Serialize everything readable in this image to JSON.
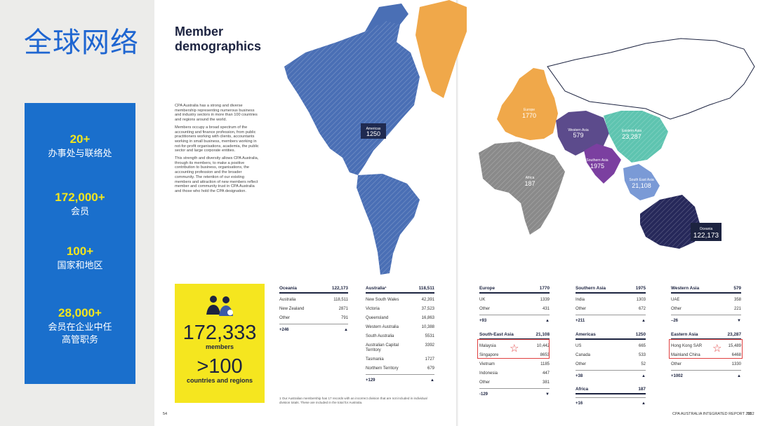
{
  "slide": {
    "title": "全球网络",
    "stats": [
      {
        "number": "20+",
        "label": "办事处与联络处"
      },
      {
        "number": "172,000+",
        "label": "会员"
      },
      {
        "number": "100+",
        "label": "国家和地区"
      },
      {
        "number": "28,000+",
        "label": "会员在企业中任高管职务"
      }
    ]
  },
  "report": {
    "title": "Member demographics",
    "intro": [
      "CPA Australia has a strong and diverse membership representing numerous business and industry sectors in more than 100 countries and regions around the world.",
      "Members occupy a broad spectrum of the accounting and finance profession, from public practitioners working with clients, accountants working in small business, members working in not-for-profit organisations, academia, the public sector and large corporate entities.",
      "This strength and diversity allows CPA Australia, through its members, to make a positive contribution to business, organisations, the accounting profession and the broader community. The retention of our existing members and attraction of new members reflect member and community trust in CPA Australia and those who hold the CPA designation."
    ],
    "map_labels": [
      {
        "name": "Americas",
        "value": "1250"
      },
      {
        "name": "Europe",
        "value": "1770"
      },
      {
        "name": "Western Asia",
        "value": "579"
      },
      {
        "name": "Eastern Asia",
        "value": "23,287"
      },
      {
        "name": "Southern Asia",
        "value": "1975"
      },
      {
        "name": "Africa",
        "value": "187"
      },
      {
        "name": "South East Asia",
        "value": "21,108"
      },
      {
        "name": "Oceania",
        "value": "122,173"
      }
    ],
    "summary": {
      "members_value": "172,333",
      "members_label": "members",
      "countries_value": ">100",
      "countries_label": "countries and regions"
    },
    "tables": {
      "oceania": {
        "title": "Oceania",
        "total": "122,173",
        "rows": [
          [
            "Australia",
            "118,511"
          ],
          [
            "New Zealand",
            "2871"
          ],
          [
            "Other",
            "791"
          ]
        ],
        "change": "+246",
        "arrow": "▲"
      },
      "australia": {
        "title": "Australia¹",
        "total": "118,511",
        "rows": [
          [
            "New South Wales",
            "42,391"
          ],
          [
            "Victoria",
            "37,523"
          ],
          [
            "Queensland",
            "16,863"
          ],
          [
            "Western Australia",
            "10,388"
          ],
          [
            "South Australia",
            "5531"
          ],
          [
            "Australian Capital Territory",
            "3392"
          ],
          [
            "Tasmania",
            "1727"
          ],
          [
            "Northern Territory",
            "679"
          ]
        ],
        "change": "+129",
        "arrow": "▲"
      },
      "europe": {
        "title": "Europe",
        "total": "1770",
        "rows": [
          [
            "UK",
            "1339"
          ],
          [
            "Other",
            "431"
          ]
        ],
        "change": "+93",
        "arrow": "▲"
      },
      "southern_asia": {
        "title": "Southern Asia",
        "total": "1975",
        "rows": [
          [
            "India",
            "1303"
          ],
          [
            "Other",
            "672"
          ]
        ],
        "change": "+211",
        "arrow": "▲"
      },
      "western_asia": {
        "title": "Western Asia",
        "total": "579",
        "rows": [
          [
            "UAE",
            "358"
          ],
          [
            "Other",
            "221"
          ]
        ],
        "change": "–26",
        "arrow": "▼"
      },
      "south_east_asia": {
        "title": "South-East Asia",
        "total": "21,108",
        "rows": [
          [
            "Malaysia",
            "10,442"
          ],
          [
            "Singapore",
            "8653"
          ],
          [
            "Vietnam",
            "1185"
          ],
          [
            "Indonesia",
            "447"
          ],
          [
            "Other",
            "381"
          ]
        ],
        "change": "-129",
        "arrow": "▼"
      },
      "americas": {
        "title": "Americas",
        "total": "1250",
        "rows": [
          [
            "US",
            "665"
          ],
          [
            "Canada",
            "533"
          ],
          [
            "Other",
            "52"
          ]
        ],
        "change": "+38",
        "arrow": "▲"
      },
      "eastern_asia": {
        "title": "Eastern Asia",
        "total": "23,287",
        "rows": [
          [
            "Hong Kong SAR",
            "15,489"
          ],
          [
            "Mainland China",
            "6468"
          ],
          [
            "Other",
            "1330"
          ]
        ],
        "change": "+1002",
        "arrow": "▲"
      },
      "africa": {
        "title": "Africa",
        "total": "187",
        "rows": [],
        "change": "+16",
        "arrow": "▲"
      }
    },
    "footnote": "1  Our Australian membership has 17 records with an incorrect division that are not included in individual division totals. These are included in the total for Australia.",
    "page_left": "54",
    "page_right_label": "CPA AUSTRALIA INTEGRATED REPORT 2022",
    "page_right": "55",
    "colors": {
      "americas": "#4a6fb5",
      "greenland": "#f0a84a",
      "europe": "#f0a84a",
      "western_asia": "#5c4b8c",
      "eastern_asia": "#5ec4b0",
      "southern_asia": "#7b3fa0",
      "africa": "#8a8a8a",
      "south_east_asia": "#7a9ad6",
      "oceania": "#26285a",
      "stat_blue": "#1a6fcc",
      "highlight": "#f5e61f"
    }
  }
}
